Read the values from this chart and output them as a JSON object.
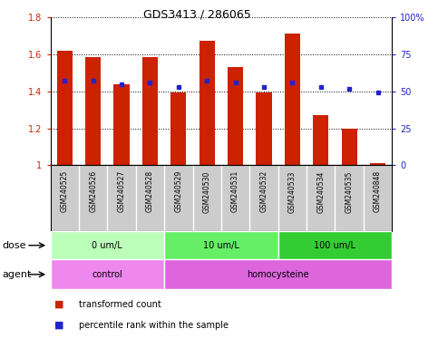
{
  "title": "GDS3413 / 286065",
  "samples": [
    "GSM240525",
    "GSM240526",
    "GSM240527",
    "GSM240528",
    "GSM240529",
    "GSM240530",
    "GSM240531",
    "GSM240532",
    "GSM240533",
    "GSM240534",
    "GSM240535",
    "GSM240848"
  ],
  "red_values": [
    1.62,
    1.585,
    1.44,
    1.585,
    1.395,
    1.675,
    1.53,
    1.395,
    1.715,
    1.27,
    1.2,
    1.01
  ],
  "blue_pct": [
    57,
    57,
    55,
    56,
    53,
    57,
    56,
    53,
    56,
    53,
    52,
    49
  ],
  "ylim_left": [
    1.0,
    1.8
  ],
  "ylim_right": [
    0,
    100
  ],
  "yticks_left": [
    1.0,
    1.2,
    1.4,
    1.6,
    1.8
  ],
  "ytick_labels_left": [
    "1",
    "1.2",
    "1.4",
    "1.6",
    "1.8"
  ],
  "yticks_right": [
    0,
    25,
    50,
    75,
    100
  ],
  "ytick_labels_right": [
    "0",
    "25",
    "50",
    "75",
    "100%"
  ],
  "bar_color": "#CC2200",
  "dot_color": "#2222CC",
  "dose_groups": [
    {
      "label": "0 um/L",
      "start": 0,
      "end": 3,
      "color": "#BBFFBB"
    },
    {
      "label": "10 um/L",
      "start": 4,
      "end": 7,
      "color": "#66EE66"
    },
    {
      "label": "100 um/L",
      "start": 8,
      "end": 11,
      "color": "#33CC33"
    }
  ],
  "agent_groups": [
    {
      "label": "control",
      "start": 0,
      "end": 3,
      "color": "#EE88EE"
    },
    {
      "label": "homocysteine",
      "start": 4,
      "end": 11,
      "color": "#DD66DD"
    }
  ],
  "legend_red_label": "transformed count",
  "legend_blue_label": "percentile rank within the sample",
  "bar_width": 0.55,
  "title_fontsize": 9,
  "label_fontsize": 7,
  "tick_fontsize": 7,
  "sample_fontsize": 5.5,
  "row_label_fontsize": 8
}
